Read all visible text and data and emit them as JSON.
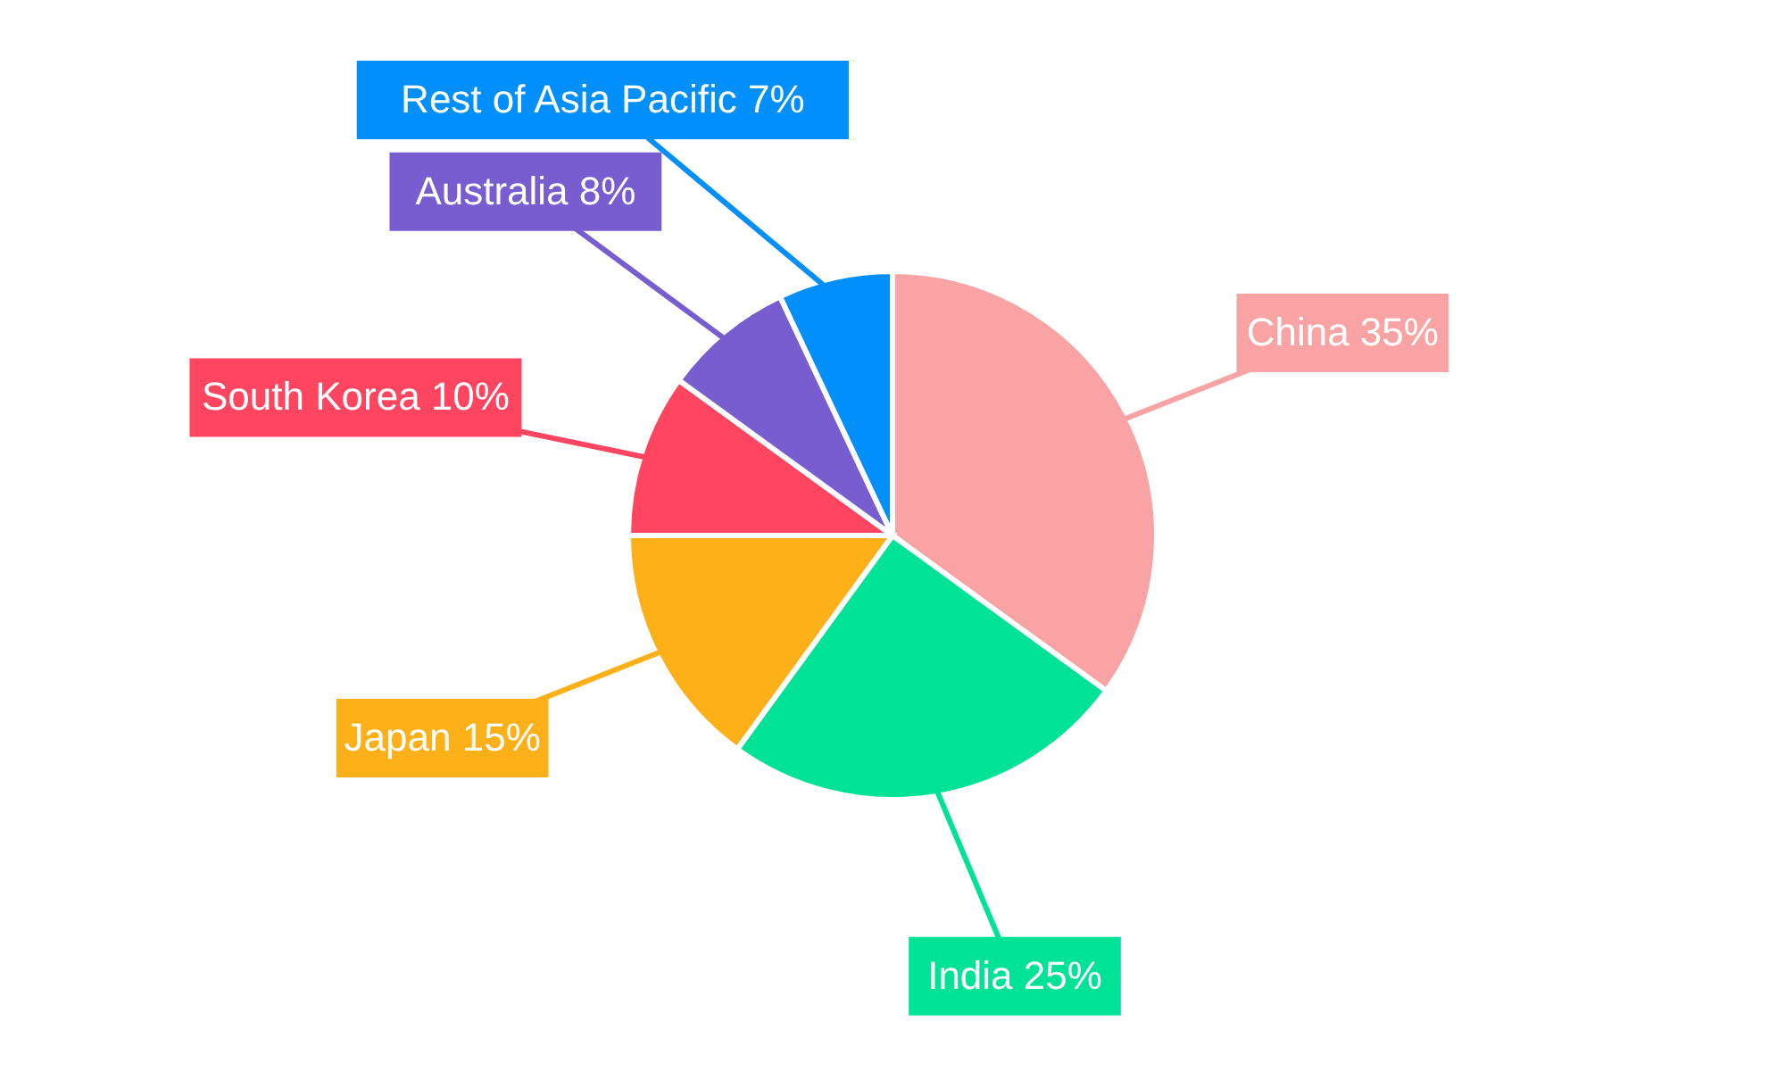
{
  "chart_data": {
    "type": "pie",
    "categories": [
      "China",
      "India",
      "Japan",
      "South Korea",
      "Australia",
      "Rest of Asia Pacific"
    ],
    "values": [
      35,
      25,
      15,
      10,
      8,
      7
    ],
    "colors": [
      "#f9a3a4",
      "#00e396",
      "#feb019",
      "#ff4560",
      "#775dd0",
      "#008ffb"
    ],
    "value_labels": [
      "35%",
      "25%",
      "15%",
      "10%",
      "8%",
      "7%"
    ]
  }
}
